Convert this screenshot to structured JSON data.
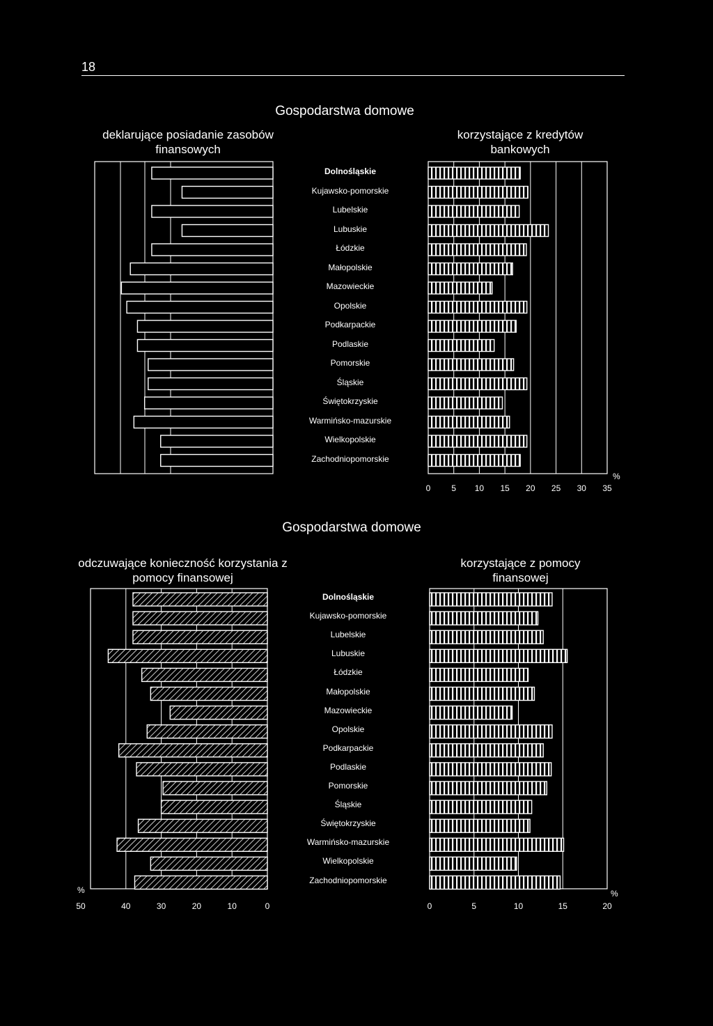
{
  "page": {
    "number": "18"
  },
  "chart_data": [
    {
      "type": "bar",
      "title": "Gospodarstwa domowe",
      "panels": [
        {
          "subtitle": "deklarujące posiadanie zasobów finansowych",
          "direction": "left",
          "values": [
            68,
            51,
            68,
            51,
            68,
            80,
            85,
            82,
            76,
            76,
            70,
            70,
            72,
            78,
            63,
            63
          ],
          "note": ""
        },
        {
          "subtitle": "korzystające z kredytów bankowych",
          "direction": "right",
          "xlim": [
            0,
            35
          ],
          "ticks": [
            "0",
            "5",
            "10",
            "15",
            "20",
            "25",
            "30",
            "35"
          ],
          "unit": "%",
          "values": [
            18,
            19.5,
            17.8,
            23.5,
            19.2,
            16.5,
            12.5,
            19.3,
            17.2,
            12.9,
            16.7,
            19.3,
            14.5,
            15.9,
            19.3,
            18
          ]
        }
      ],
      "categories": [
        "Dolnośląskie",
        "Kujawsko-pomorskie",
        "Lubelskie",
        "Lubuskie",
        "Łódzkie",
        "Małopolskie",
        "Mazowieckie",
        "Opolskie",
        "Podkarpackie",
        "Podlaskie",
        "Pomorskie",
        "Śląskie",
        "Świętokrzyskie",
        "Warmińsko-mazurskie",
        "Wielkopolskie",
        "Zachodniopomorskie"
      ]
    },
    {
      "type": "bar",
      "title": "Gospodarstwa domowe",
      "panels": [
        {
          "subtitle": "odczuwające konieczność korzystania z pomocy finansowej",
          "direction": "left",
          "xlim": [
            0,
            50
          ],
          "ticks": [
            "50",
            "40",
            "30",
            "20",
            "10",
            "0"
          ],
          "unit": "%",
          "values": [
            38,
            38,
            38,
            45,
            35.5,
            33,
            27.5,
            34,
            42,
            37,
            29.5,
            30,
            36.5,
            42.5,
            33,
            37.5
          ]
        },
        {
          "subtitle": "korzystające z pomocy finansowej",
          "direction": "right",
          "xlim": [
            0,
            20
          ],
          "ticks": [
            "0",
            "5",
            "10",
            "15",
            "20"
          ],
          "unit": "%",
          "values": [
            13.8,
            12.2,
            12.8,
            15.5,
            11.1,
            11.8,
            9.3,
            13.8,
            12.8,
            13.7,
            13.2,
            11.5,
            11.3,
            15.1,
            9.8,
            14.7
          ]
        }
      ],
      "categories": [
        "Dolnośląskie",
        "Kujawsko-pomorskie",
        "Lubelskie",
        "Lubuskie",
        "Łódzkie",
        "Małopolskie",
        "Mazowieckie",
        "Opolskie",
        "Podkarpackie",
        "Podlaskie",
        "Pomorskie",
        "Śląskie",
        "Świętokrzyskie",
        "Warmińsko-mazurskie",
        "Wielkopolskie",
        "Zachodniopomorskie"
      ]
    }
  ]
}
